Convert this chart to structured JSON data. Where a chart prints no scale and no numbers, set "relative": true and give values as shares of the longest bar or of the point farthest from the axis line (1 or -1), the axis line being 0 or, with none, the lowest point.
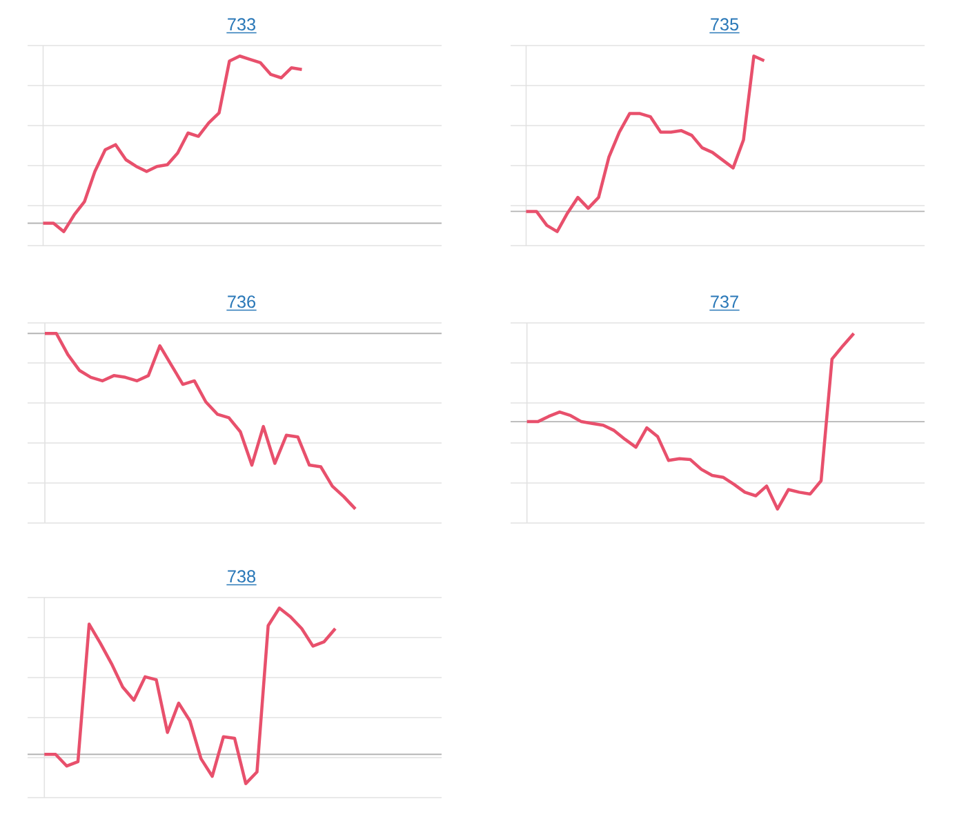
{
  "chart_data": [
    {
      "type": "line",
      "title": "733",
      "relative": true,
      "grid": "y",
      "color": "#e8506c",
      "categories": [
        null,
        null,
        null,
        null,
        null,
        null,
        null,
        null,
        null,
        null,
        null,
        null,
        null,
        null,
        null,
        null,
        null,
        null,
        null,
        null,
        null,
        null,
        null,
        null,
        null,
        null,
        null,
        null,
        null,
        null,
        null,
        null,
        null,
        null,
        null,
        null,
        null,
        null,
        null
      ],
      "values": [
        0,
        0,
        -0.05,
        0.05,
        0.13,
        0.31,
        0.44,
        0.47,
        0.38,
        0.34,
        0.31,
        0.34,
        0.35,
        0.42,
        0.54,
        0.52,
        0.6,
        0.66,
        0.97,
        1.0,
        0.98,
        0.96,
        0.89,
        0.87,
        0.93,
        0.92,
        null,
        null,
        null,
        null,
        null,
        null,
        null,
        null,
        null,
        null,
        null,
        null,
        null
      ]
    },
    {
      "type": "line",
      "title": "735",
      "relative": true,
      "grid": "y",
      "color": "#e8506c",
      "categories": [
        null,
        null,
        null,
        null,
        null,
        null,
        null,
        null,
        null,
        null,
        null,
        null,
        null,
        null,
        null,
        null,
        null,
        null,
        null,
        null,
        null,
        null,
        null,
        null,
        null,
        null,
        null,
        null,
        null,
        null,
        null,
        null,
        null,
        null,
        null,
        null,
        null,
        null,
        null
      ],
      "values": [
        0,
        0,
        -0.09,
        -0.13,
        -0.01,
        0.09,
        0.02,
        0.09,
        0.35,
        0.51,
        0.63,
        0.63,
        0.61,
        0.51,
        0.51,
        0.52,
        0.49,
        0.41,
        0.38,
        0.33,
        0.28,
        0.46,
        1.0,
        0.97,
        null,
        null,
        null,
        null,
        null,
        null,
        null,
        null,
        null,
        null,
        null,
        null,
        null,
        null,
        null
      ]
    },
    {
      "type": "line",
      "title": "736",
      "relative": true,
      "grid": "y",
      "color": "#e8506c",
      "categories": [
        null,
        null,
        null,
        null,
        null,
        null,
        null,
        null,
        null,
        null,
        null,
        null,
        null,
        null,
        null,
        null,
        null,
        null,
        null,
        null,
        null,
        null,
        null,
        null,
        null,
        null,
        null,
        null,
        null,
        null,
        null,
        null,
        null,
        null,
        null
      ],
      "values": [
        0,
        0,
        -0.12,
        -0.21,
        -0.25,
        -0.27,
        -0.24,
        -0.25,
        -0.27,
        -0.24,
        -0.07,
        -0.18,
        -0.29,
        -0.27,
        -0.39,
        -0.46,
        -0.48,
        -0.56,
        -0.75,
        -0.53,
        -0.74,
        -0.58,
        -0.59,
        -0.75,
        -0.76,
        -0.87,
        -0.93,
        -1.0,
        null,
        null,
        null,
        null,
        null,
        null,
        null
      ]
    },
    {
      "type": "line",
      "title": "737",
      "relative": true,
      "grid": "y",
      "color": "#e8506c",
      "categories": [
        null,
        null,
        null,
        null,
        null,
        null,
        null,
        null,
        null,
        null,
        null,
        null,
        null,
        null,
        null,
        null,
        null,
        null,
        null,
        null,
        null,
        null,
        null,
        null,
        null,
        null,
        null,
        null,
        null,
        null,
        null,
        null,
        null,
        null,
        null,
        null,
        null
      ],
      "values": [
        0,
        0,
        0.06,
        0.11,
        0.07,
        0,
        -0.02,
        -0.04,
        -0.1,
        -0.2,
        -0.29,
        -0.07,
        -0.17,
        -0.44,
        -0.42,
        -0.43,
        -0.54,
        -0.61,
        -0.63,
        -0.71,
        -0.8,
        -0.84,
        -0.73,
        -0.99,
        -0.77,
        -0.8,
        -0.82,
        -0.67,
        0.71,
        0.86,
        1.0,
        null,
        null,
        null,
        null,
        null,
        null
      ]
    },
    {
      "type": "line",
      "title": "738",
      "relative": true,
      "grid": "y",
      "color": "#e8506c",
      "categories": [
        null,
        null,
        null,
        null,
        null,
        null,
        null,
        null,
        null,
        null,
        null,
        null,
        null,
        null,
        null,
        null,
        null,
        null,
        null,
        null,
        null,
        null,
        null,
        null,
        null,
        null,
        null,
        null,
        null,
        null,
        null,
        null,
        null,
        null,
        null,
        null
      ],
      "values": [
        0,
        0,
        -0.08,
        -0.05,
        0.89,
        0.76,
        0.62,
        0.46,
        0.37,
        0.53,
        0.51,
        0.15,
        0.35,
        0.23,
        -0.03,
        -0.15,
        0.12,
        0.11,
        -0.2,
        -0.12,
        0.88,
        1.0,
        0.94,
        0.86,
        0.74,
        0.77,
        0.86,
        null,
        null,
        null,
        null,
        null,
        null,
        null,
        null,
        null
      ]
    }
  ]
}
